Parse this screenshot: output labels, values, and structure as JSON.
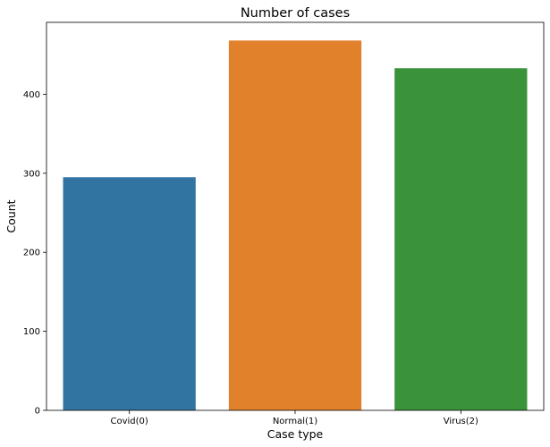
{
  "chart_data": {
    "type": "bar",
    "title": "Number of cases",
    "xlabel": "Case type",
    "ylabel": "Count",
    "categories": [
      "Covid(0)",
      "Normal(1)",
      "Virus(2)"
    ],
    "values": [
      295,
      468,
      433
    ],
    "colors": [
      "#3274a1",
      "#e1812c",
      "#3a923a"
    ],
    "ylim": [
      0,
      491
    ],
    "yticks": [
      0,
      100,
      200,
      300,
      400
    ],
    "grid": false,
    "legend": false
  }
}
